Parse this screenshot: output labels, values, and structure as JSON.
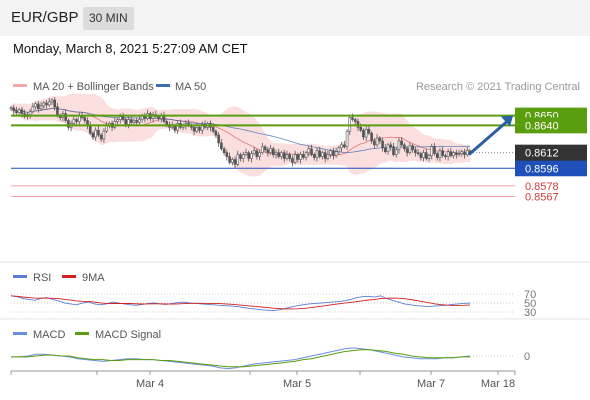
{
  "header": {
    "pair": "EUR/GBP",
    "timeframe": "30 MIN"
  },
  "timestamp": "Monday, March 8, 2021 5:27:09 AM CET",
  "legend": {
    "ma20": "MA 20 + Bollinger Bands",
    "ma50": "MA 50"
  },
  "credit": "Research © 2021 Trading Central",
  "rsi_legend": {
    "rsi": "RSI",
    "ma": "9MA"
  },
  "macd_legend": {
    "macd": "MACD",
    "signal": "MACD Signal"
  },
  "colors": {
    "candle": "#555555",
    "bollinger": "#f7c4c4",
    "ma20": "#e05a5a",
    "ma50": "#3b6cb0",
    "resistance": "#5a9e10",
    "support": "#1f4fb8",
    "faint": "#f0a8a8",
    "arrow": "#2d5fa3",
    "current": "#333333",
    "rsi": "#5b7fd6",
    "rsi_ma": "#d42020",
    "macd": "#6b8ee0",
    "macd_signal": "#5a9e10"
  },
  "chart_data": [
    {
      "type": "candlestick",
      "ylim": [
        0.8545,
        0.8666
      ],
      "x_labels": [
        "Mar 4",
        "Mar 5",
        "Mar 7",
        "Mar 18"
      ],
      "current_price": "0.8612",
      "levels": [
        {
          "value": 0.865,
          "label": "0.8650",
          "kind": "resistance"
        },
        {
          "value": 0.864,
          "label": "0.8640",
          "kind": "resistance"
        },
        {
          "value": 0.8596,
          "label": "0.8596",
          "kind": "support"
        },
        {
          "value": 0.8578,
          "label": "0.8578",
          "kind": "support-faint"
        },
        {
          "value": 0.8567,
          "label": "0.8567",
          "kind": "support-faint"
        }
      ],
      "forecast": {
        "from": 0.8612,
        "to": 0.865
      },
      "closes": [
        0.8658,
        0.8655,
        0.8653,
        0.8656,
        0.8652,
        0.8649,
        0.8651,
        0.8654,
        0.8659,
        0.8662,
        0.8657,
        0.866,
        0.8663,
        0.8661,
        0.8664,
        0.8666,
        0.8659,
        0.865,
        0.8648,
        0.8652,
        0.8645,
        0.8638,
        0.8642,
        0.8646,
        0.8644,
        0.865,
        0.8648,
        0.8645,
        0.864,
        0.8632,
        0.8628,
        0.8635,
        0.863,
        0.8626,
        0.8634,
        0.864,
        0.8642,
        0.8638,
        0.8644,
        0.8646,
        0.8649,
        0.8646,
        0.8641,
        0.8646,
        0.8643,
        0.8645,
        0.8643,
        0.8646,
        0.865,
        0.8647,
        0.8652,
        0.8647,
        0.8651,
        0.8649,
        0.8647,
        0.865,
        0.8644,
        0.8641,
        0.8638,
        0.864,
        0.8635,
        0.8642,
        0.8638,
        0.864,
        0.8642,
        0.864,
        0.8638,
        0.8634,
        0.8638,
        0.8635,
        0.8641,
        0.8638,
        0.8642,
        0.8638,
        0.8634,
        0.863,
        0.8622,
        0.8616,
        0.8612,
        0.8608,
        0.8602,
        0.8605,
        0.86,
        0.861,
        0.8606,
        0.861,
        0.8612,
        0.8606,
        0.8611,
        0.8614,
        0.8608,
        0.8612,
        0.8618,
        0.8615,
        0.8612,
        0.8616,
        0.861,
        0.8612,
        0.8608,
        0.8612,
        0.8606,
        0.861,
        0.8606,
        0.8602,
        0.861,
        0.8605,
        0.861,
        0.8607,
        0.8612,
        0.8616,
        0.861,
        0.8607,
        0.8614,
        0.8608,
        0.8612,
        0.8606,
        0.861,
        0.8614,
        0.8609,
        0.8613,
        0.8617,
        0.862,
        0.8618,
        0.8634,
        0.8648,
        0.8646,
        0.8644,
        0.8638,
        0.8635,
        0.8628,
        0.8636,
        0.8632,
        0.8624,
        0.862,
        0.8627,
        0.8624,
        0.8617,
        0.8613,
        0.862,
        0.8618,
        0.861,
        0.8615,
        0.8624,
        0.862,
        0.8616,
        0.8612,
        0.8619,
        0.8615,
        0.8612,
        0.8611,
        0.8607,
        0.8612,
        0.8606,
        0.8609,
        0.8618,
        0.8611,
        0.8607,
        0.8614,
        0.8609,
        0.8608,
        0.8613,
        0.8609,
        0.8612,
        0.861,
        0.8611,
        0.8613,
        0.861,
        0.8614,
        0.8612
      ]
    },
    {
      "type": "line",
      "name": "RSI",
      "yticks": [
        70,
        50,
        30
      ],
      "values": [
        66,
        64,
        60,
        58,
        56,
        60,
        62,
        58,
        55,
        50,
        48,
        46,
        50,
        52,
        48,
        46,
        48,
        52,
        50,
        48,
        46,
        45,
        47,
        49,
        50,
        48,
        47,
        49,
        51,
        52,
        50,
        49,
        48,
        47,
        46,
        45,
        44,
        43,
        42,
        40,
        38,
        37,
        35,
        34,
        33,
        35,
        38,
        41,
        44,
        46,
        48,
        49,
        50,
        51,
        52,
        53,
        55,
        58,
        62,
        64,
        65,
        63,
        66,
        60,
        56,
        52,
        48,
        46,
        44,
        43,
        42,
        43,
        44,
        45,
        47,
        48,
        49,
        50
      ]
    },
    {
      "type": "line",
      "name": "MACD",
      "yticks": [
        0
      ],
      "values": [
        -0.0001,
        -0.0001,
        0.0,
        0.0002,
        0.0002,
        0.0001,
        0.0,
        -0.0001,
        -0.0003,
        -0.0004,
        -0.0005,
        -0.0006,
        -0.0005,
        -0.0004,
        -0.0003,
        -0.0003,
        -0.0004,
        -0.0004,
        -0.0005,
        -0.0006,
        -0.0007,
        -0.0008,
        -0.0009,
        -0.001,
        -0.0011,
        -0.0013,
        -0.0014,
        -0.0013,
        -0.0011,
        -0.0009,
        -0.0008,
        -0.0007,
        -0.0006,
        -0.0005,
        -0.0004,
        -0.0002,
        0.0,
        0.0002,
        0.0004,
        0.0006,
        0.0008,
        0.0009,
        0.0008,
        0.0007,
        0.0005,
        0.0003,
        0.0001,
        -0.0001,
        -0.0002,
        -0.0003,
        -0.0003,
        -0.0003,
        -0.0002,
        -0.0002,
        -0.0001,
        0.0
      ],
      "signal": [
        -0.0001,
        -0.0001,
        -0.0001,
        0.0,
        0.0001,
        0.0001,
        0.0,
        0.0,
        -0.0002,
        -0.0003,
        -0.0004,
        -0.0004,
        -0.0005,
        -0.0005,
        -0.0004,
        -0.0004,
        -0.0004,
        -0.0004,
        -0.0005,
        -0.0005,
        -0.0006,
        -0.0007,
        -0.0008,
        -0.0009,
        -0.001,
        -0.0011,
        -0.0012,
        -0.0012,
        -0.0012,
        -0.0011,
        -0.001,
        -0.0009,
        -0.0008,
        -0.0007,
        -0.0006,
        -0.0004,
        -0.0003,
        -0.0001,
        0.0001,
        0.0003,
        0.0005,
        0.0006,
        0.0007,
        0.0007,
        0.0006,
        0.0005,
        0.0003,
        0.0002,
        0.0,
        -0.0001,
        -0.0002,
        -0.0002,
        -0.0002,
        -0.0002,
        -0.0001,
        -0.0001
      ]
    }
  ]
}
